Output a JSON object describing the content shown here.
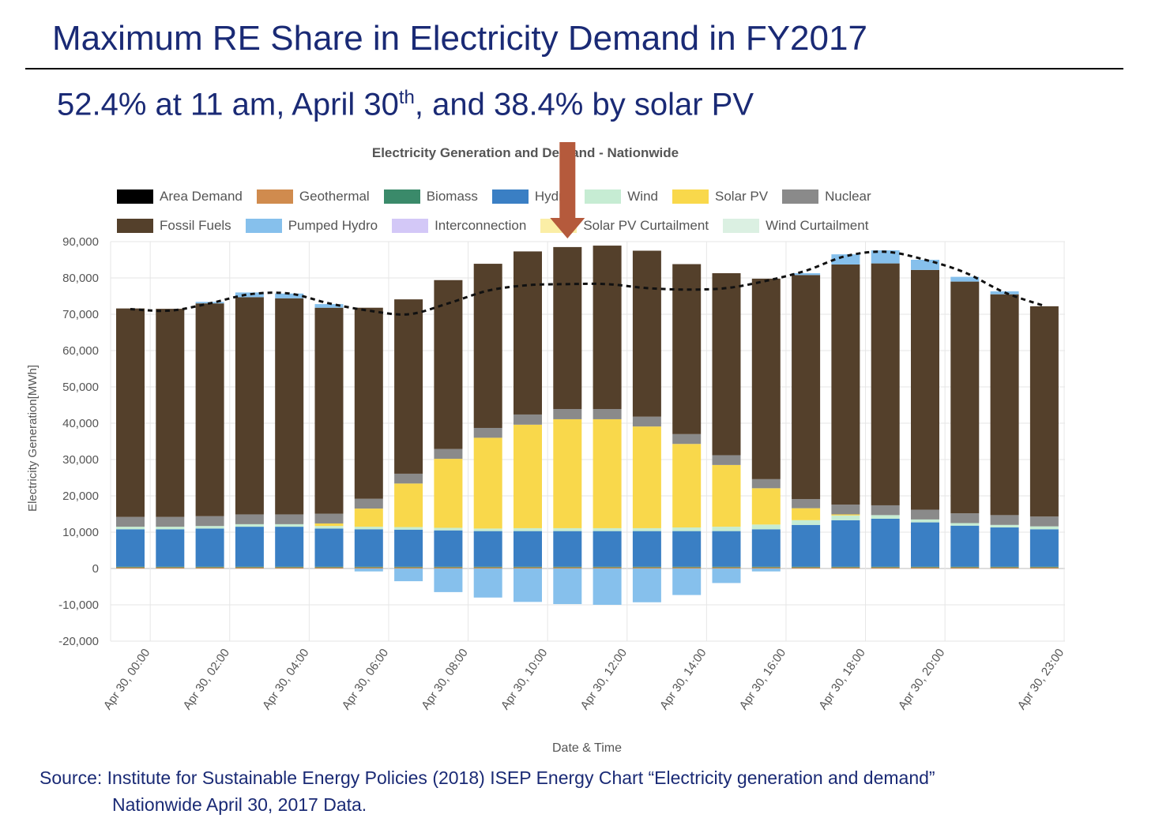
{
  "slide": {
    "title": "Maximum RE Share in Electricity Demand in FY2017",
    "subtitle_pre": "52.4% at 11 am, April 30",
    "subtitle_sup": "th",
    "subtitle_post": ", and 38.4% by solar PV"
  },
  "source": {
    "line1": "Source: Institute for Sustainable Energy Policies (2018) ISEP Energy Chart “Electricity generation and demand”",
    "line2": "Nationwide April 30, 2017 Data."
  },
  "chart_data": {
    "type": "bar",
    "stacked": true,
    "title": "Electricity Generation and Demand - Nationwide",
    "xlabel": "Date & Time",
    "ylabel": "Electricity Generation[MWh]",
    "ylim": [
      -20000,
      90000
    ],
    "yticks": [
      90000,
      80000,
      70000,
      60000,
      50000,
      40000,
      30000,
      20000,
      10000,
      0,
      -10000,
      -20000
    ],
    "ytick_labels": [
      "90,000",
      "80,000",
      "70,000",
      "60,000",
      "50,000",
      "40,000",
      "30,000",
      "20,000",
      "10,000",
      "0",
      "-10,000",
      "-20,000"
    ],
    "categories": [
      "00:00",
      "01:00",
      "02:00",
      "03:00",
      "04:00",
      "05:00",
      "06:00",
      "07:00",
      "08:00",
      "09:00",
      "10:00",
      "11:00",
      "12:00",
      "13:00",
      "14:00",
      "15:00",
      "16:00",
      "17:00",
      "18:00",
      "19:00",
      "20:00",
      "21:00",
      "22:00",
      "23:00"
    ],
    "xtick_labels": [
      {
        "index": 0,
        "label": "Apr 30, 00:00"
      },
      {
        "index": 2,
        "label": "Apr 30, 02:00"
      },
      {
        "index": 4,
        "label": "Apr 30, 04:00"
      },
      {
        "index": 6,
        "label": "Apr 30, 06:00"
      },
      {
        "index": 8,
        "label": "Apr 30, 08:00"
      },
      {
        "index": 10,
        "label": "Apr 30, 10:00"
      },
      {
        "index": 12,
        "label": "Apr 30, 12:00"
      },
      {
        "index": 14,
        "label": "Apr 30, 14:00"
      },
      {
        "index": 16,
        "label": "Apr 30, 16:00"
      },
      {
        "index": 18,
        "label": "Apr 30, 18:00"
      },
      {
        "index": 20,
        "label": "Apr 30, 20:00"
      },
      {
        "index": 23,
        "label": "Apr 30, 23:00"
      }
    ],
    "legend": [
      {
        "name": "Area Demand",
        "color": "#000000"
      },
      {
        "name": "Geothermal",
        "color": "#d08b4e"
      },
      {
        "name": "Biomass",
        "color": "#3a8a6a"
      },
      {
        "name": "Hydro",
        "color": "#3a7fc4"
      },
      {
        "name": "Wind",
        "color": "#c6ecd3"
      },
      {
        "name": "Solar PV",
        "color": "#f9d84b"
      },
      {
        "name": "Nuclear",
        "color": "#8a8a8a"
      },
      {
        "name": "Fossil Fuels",
        "color": "#54402b"
      },
      {
        "name": "Pumped Hydro",
        "color": "#86c0ec"
      },
      {
        "name": "Interconnection",
        "color": "#d3c8f7"
      },
      {
        "name": "Solar PV Curtailment",
        "color": "#fbeea6"
      },
      {
        "name": "Wind Curtailment",
        "color": "#dbf0e2"
      }
    ],
    "series": [
      {
        "name": "Geothermal",
        "values": [
          300,
          300,
          300,
          300,
          300,
          300,
          300,
          300,
          300,
          300,
          300,
          300,
          300,
          300,
          300,
          300,
          300,
          300,
          300,
          300,
          300,
          300,
          300,
          300
        ]
      },
      {
        "name": "Biomass",
        "values": [
          200,
          200,
          200,
          200,
          200,
          200,
          200,
          200,
          200,
          200,
          200,
          200,
          200,
          200,
          200,
          200,
          200,
          200,
          200,
          200,
          200,
          200,
          200,
          200
        ]
      },
      {
        "name": "Hydro",
        "values": [
          10300,
          10300,
          10500,
          11000,
          11000,
          10500,
          10300,
          10200,
          10000,
          9800,
          9800,
          9800,
          9800,
          9800,
          9800,
          9800,
          10300,
          11500,
          12800,
          13200,
          12200,
          11300,
          10800,
          10300
        ]
      },
      {
        "name": "Wind",
        "values": [
          700,
          700,
          700,
          700,
          700,
          700,
          700,
          700,
          700,
          700,
          800,
          800,
          800,
          800,
          1000,
          1200,
          1300,
          1300,
          1300,
          1000,
          800,
          700,
          700,
          800
        ]
      },
      {
        "name": "Solar PV",
        "values": [
          0,
          0,
          0,
          0,
          0,
          700,
          5000,
          12000,
          19000,
          25000,
          28500,
          30000,
          30000,
          28000,
          23000,
          17000,
          10000,
          3300,
          300,
          0,
          0,
          0,
          0,
          0
        ]
      },
      {
        "name": "Nuclear",
        "values": [
          2700,
          2700,
          2700,
          2700,
          2700,
          2700,
          2700,
          2700,
          2700,
          2700,
          2800,
          2800,
          2800,
          2700,
          2700,
          2700,
          2500,
          2500,
          2700,
          2700,
          2700,
          2700,
          2700,
          2700
        ]
      },
      {
        "name": "Fossil Fuels",
        "values": [
          57400,
          57300,
          58600,
          59800,
          59500,
          56700,
          52600,
          48000,
          46500,
          45200,
          44900,
          44600,
          45000,
          45700,
          46800,
          50100,
          55200,
          61700,
          66100,
          66600,
          66000,
          63800,
          60800,
          57900
        ]
      },
      {
        "name": "Pumped Hydro",
        "values": [
          0,
          0,
          400,
          1300,
          1300,
          1000,
          0,
          0,
          0,
          0,
          0,
          0,
          0,
          0,
          0,
          0,
          0,
          500,
          2800,
          3600,
          2800,
          1300,
          800,
          0
        ]
      },
      {
        "name": "Pumped Hydro (charging)",
        "values": [
          0,
          0,
          0,
          0,
          0,
          0,
          -800,
          -3500,
          -6500,
          -8000,
          -9200,
          -9800,
          -10000,
          -9300,
          -7300,
          -4000,
          -800,
          0,
          0,
          0,
          0,
          0,
          0,
          0
        ]
      },
      {
        "name": "Area Demand",
        "type": "line",
        "values": [
          71400,
          71000,
          73000,
          75500,
          75700,
          73000,
          71000,
          70000,
          73000,
          76500,
          78000,
          78300,
          78300,
          77200,
          76800,
          77200,
          79200,
          82000,
          86000,
          87200,
          85000,
          81500,
          76000,
          72300
        ]
      }
    ]
  }
}
